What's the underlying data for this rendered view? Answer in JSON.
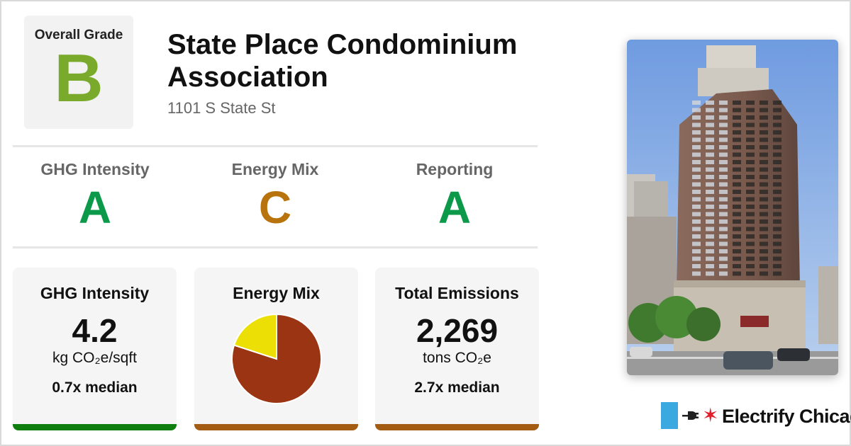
{
  "overall": {
    "label": "Overall Grade",
    "grade": "B",
    "color": "#7aaa2b"
  },
  "building": {
    "name": "State Place Condominium Association",
    "address": "1101 S State St"
  },
  "grades": [
    {
      "label": "GHG Intensity",
      "grade": "A",
      "color": "#0c9a4a"
    },
    {
      "label": "Energy Mix",
      "grade": "C",
      "color": "#b8730c"
    },
    {
      "label": "Reporting",
      "grade": "A",
      "color": "#0c9a4a"
    }
  ],
  "cards": {
    "ghg": {
      "label": "GHG Intensity",
      "value": "4.2",
      "unit": "kg CO₂e/sqft",
      "median": "0.7x median",
      "bar_color": "#0e7f0e"
    },
    "mix": {
      "label": "Energy Mix",
      "bar_color": "#a35c12"
    },
    "emissions": {
      "label": "Total Emissions",
      "value": "2,269",
      "unit": "tons CO₂e",
      "median": "2.7x median",
      "bar_color": "#a35c12"
    }
  },
  "energy_mix_pie": {
    "slices": [
      {
        "fraction": 0.8,
        "color": "#9a3412"
      },
      {
        "fraction": 0.2,
        "color": "#ebdf06"
      }
    ]
  },
  "photo": {
    "icon": "building-photo"
  },
  "brand": {
    "name": "Electrify Chicago",
    "star": "✶",
    "star_color": "#e11d2a",
    "flag_color": "#3aa9e0",
    "plug_icon": "plug-icon"
  }
}
